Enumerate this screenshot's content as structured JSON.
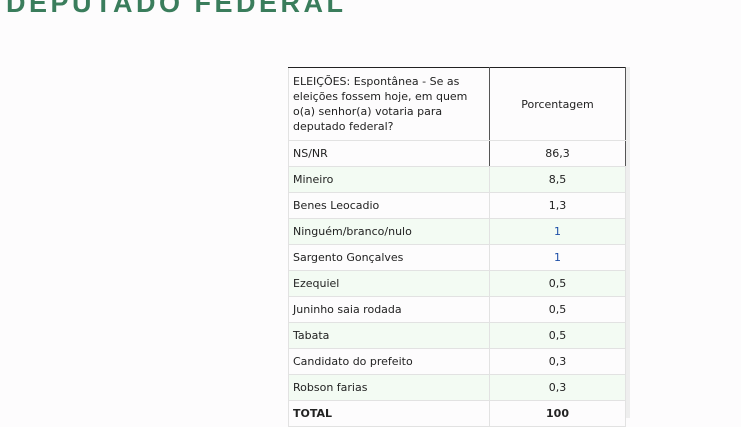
{
  "page_title": "DEPUTADO FEDERAL",
  "table": {
    "header_question": "ELEIÇÕES: Espontânea - Se as eleições fossem hoje, em quem o(a) senhor(a) votaria para deputado federal?",
    "header_value": "Porcentagem",
    "rows": [
      {
        "name": "NS/NR",
        "value": "86,3"
      },
      {
        "name": "Mineiro",
        "value": "8,5"
      },
      {
        "name": "Benes Leocadio",
        "value": "1,3"
      },
      {
        "name": "Ninguém/branco/nulo",
        "value": "1"
      },
      {
        "name": "Sargento Gonçalves",
        "value": "1"
      },
      {
        "name": "Ezequiel",
        "value": "0,5"
      },
      {
        "name": "Juninho saia rodada",
        "value": "0,5"
      },
      {
        "name": "Tabata",
        "value": "0,5"
      },
      {
        "name": "Candidato do prefeito",
        "value": "0,3"
      },
      {
        "name": "Robson farias",
        "value": "0,3"
      }
    ],
    "total": {
      "name": "TOTAL",
      "value": "100"
    }
  },
  "colors": {
    "title": "#3a7d5c",
    "row_alt": "#f3fbf3",
    "integer_value": "#1e4fa8"
  }
}
